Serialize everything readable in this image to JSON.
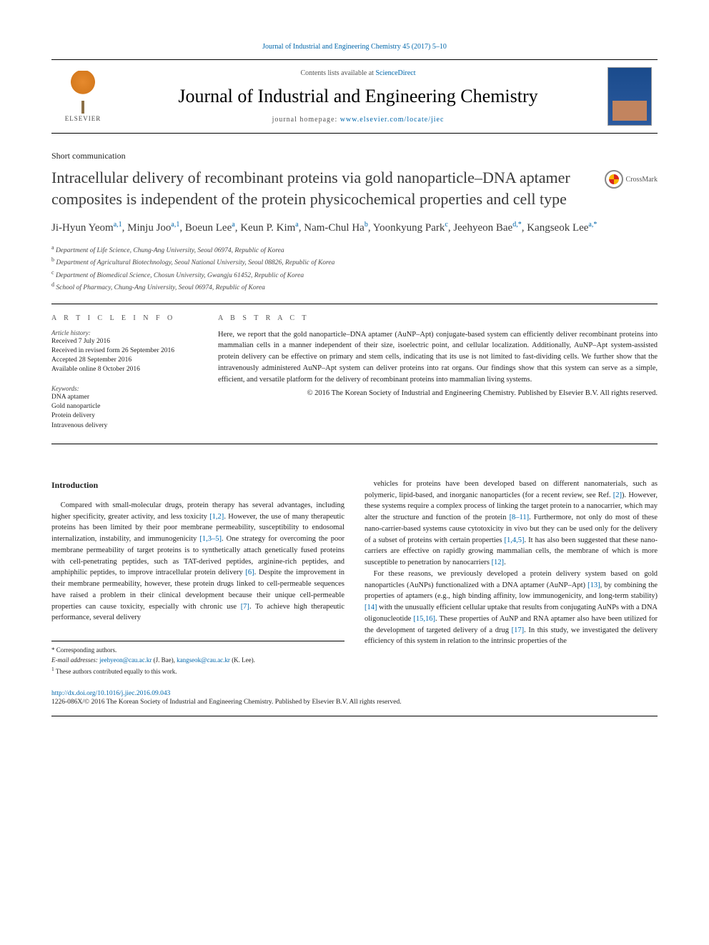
{
  "citation": "Journal of Industrial and Engineering Chemistry 45 (2017) 5–10",
  "masthead": {
    "contents_prefix": "Contents lists available at ",
    "contents_link": "ScienceDirect",
    "journal": "Journal of Industrial and Engineering Chemistry",
    "homepage_prefix": "journal homepage: ",
    "homepage_url": "www.elsevier.com/locate/jiec",
    "publisher": "ELSEVIER"
  },
  "article_type": "Short communication",
  "title": "Intracellular delivery of recombinant proteins via gold nanoparticle–DNA aptamer composites is independent of the protein physicochemical properties and cell type",
  "crossmark": "CrossMark",
  "authors_html": "Ji-Hyun Yeom<sup>a,1</sup>, Minju Joo<sup>a,1</sup>, Boeun Lee<sup>a</sup>, Keun P. Kim<sup>a</sup>, Nam-Chul Ha<sup>b</sup>, Yoonkyung Park<sup>c</sup>, Jeehyeon Bae<sup>d,*</sup>, Kangseok Lee<sup>a,*</sup>",
  "affiliations": [
    {
      "sup": "a",
      "text": "Department of Life Science, Chung-Ang University, Seoul 06974, Republic of Korea"
    },
    {
      "sup": "b",
      "text": "Department of Agricultural Biotechnology, Seoul National University, Seoul 08826, Republic of Korea"
    },
    {
      "sup": "c",
      "text": "Department of Biomedical Science, Chosun University, Gwangju 61452, Republic of Korea"
    },
    {
      "sup": "d",
      "text": "School of Pharmacy, Chung-Ang University, Seoul 06974, Republic of Korea"
    }
  ],
  "article_info": {
    "heading": "A R T I C L E  I N F O",
    "history_label": "Article history:",
    "history": "Received 7 July 2016\nReceived in revised form 26 September 2016\nAccepted 28 September 2016\nAvailable online 8 October 2016",
    "keywords_label": "Keywords:",
    "keywords": "DNA aptamer\nGold nanoparticle\nProtein delivery\nIntravenous delivery"
  },
  "abstract": {
    "heading": "A B S T R A C T",
    "text": "Here, we report that the gold nanoparticle–DNA aptamer (AuNP–Apt) conjugate-based system can efficiently deliver recombinant proteins into mammalian cells in a manner independent of their size, isoelectric point, and cellular localization. Additionally, AuNP–Apt system-assisted protein delivery can be effective on primary and stem cells, indicating that its use is not limited to fast-dividing cells. We further show that the intravenously administered AuNP–Apt system can deliver proteins into rat organs. Our findings show that this system can serve as a simple, efficient, and versatile platform for the delivery of recombinant proteins into mammalian living systems.",
    "copyright": "© 2016 The Korean Society of Industrial and Engineering Chemistry. Published by Elsevier B.V. All rights reserved."
  },
  "intro_heading": "Introduction",
  "col1_para": "Compared with small-molecular drugs, protein therapy has several advantages, including higher specificity, greater activity, and less toxicity [1,2]. However, the use of many therapeutic proteins has been limited by their poor membrane permeability, susceptibility to endosomal internalization, instability, and immunogenicity [1,3–5]. One strategy for overcoming the poor membrane permeability of target proteins is to synthetically attach genetically fused proteins with cell-penetrating peptides, such as TAT-derived peptides, arginine-rich peptides, and amphiphilic peptides, to improve intracellular protein delivery [6]. Despite the improvement in their membrane permeability, however, these protein drugs linked to cell-permeable sequences have raised a problem in their clinical development because their unique cell-permeable properties can cause toxicity, especially with chronic use [7]. To achieve high therapeutic performance, several delivery",
  "col2_para1": "vehicles for proteins have been developed based on different nanomaterials, such as polymeric, lipid-based, and inorganic nanoparticles (for a recent review, see Ref. [2]). However, these systems require a complex process of linking the target protein to a nanocarrier, which may alter the structure and function of the protein [8–11]. Furthermore, not only do most of these nano-carrier-based systems cause cytotoxicity in vivo but they can be used only for the delivery of a subset of proteins with certain properties [1,4,5]. It has also been suggested that these nano-carriers are effective on rapidly growing mammalian cells, the membrane of which is more susceptible to penetration by nanocarriers [12].",
  "col2_para2": "For these reasons, we previously developed a protein delivery system based on gold nanoparticles (AuNPs) functionalized with a DNA aptamer (AuNP–Apt) [13], by combining the properties of aptamers (e.g., high binding affinity, low immunogenicity, and long-term stability) [14] with the unusually efficient cellular uptake that results from conjugating AuNPs with a DNA oligonucleotide [15,16]. These properties of AuNP and RNA aptamer also have been utilized for the development of targeted delivery of a drug [17]. In this study, we investigated the delivery efficiency of this system in relation to the intrinsic properties of the",
  "footnotes": {
    "corresponding": "* Corresponding authors.",
    "emails_label": "E-mail addresses: ",
    "email1": "jeehyeon@cau.ac.kr",
    "email1_name": " (J. Bae), ",
    "email2": "kangseok@cau.ac.kr",
    "email2_name": " (K. Lee).",
    "equal": "1 These authors contributed equally to this work."
  },
  "doi": "http://dx.doi.org/10.1016/j.jiec.2016.09.043",
  "bottom_copyright": "1226-086X/© 2016 The Korean Society of Industrial and Engineering Chemistry. Published by Elsevier B.V. All rights reserved.",
  "refs": {
    "r12": "[1,2]",
    "r135": "[1,3–5]",
    "r6": "[6]",
    "r7": "[7]",
    "r2": "[2]",
    "r811": "[8–11]",
    "r145": "[1,4,5]",
    "rr12": "[12]",
    "r13": "[13]",
    "r14": "[14]",
    "r1516": "[15,16]",
    "r17": "[17]"
  }
}
